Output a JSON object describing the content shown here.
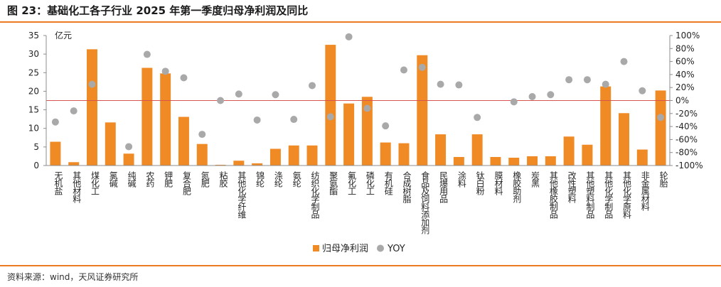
{
  "title": "图 23：基础化工各子行业 2025 年第一季度归母净利润及同比",
  "source": "资料来源：wind，天风证券研究所",
  "colors": {
    "bar": "#f08a24",
    "dot": "#a9a9a9",
    "zero_line": "#d9534f",
    "accent": "#ec7a22"
  },
  "chart_data": {
    "type": "bar",
    "unit_label": "亿元",
    "categories": [
      "无机盐",
      "其他材料",
      "煤化工",
      "氯碱",
      "纯碱",
      "农药",
      "钾肥",
      "复合肥",
      "氮肥",
      "粘胶",
      "其他化学纤维",
      "锦纶",
      "涤纶",
      "氨纶",
      "纺织化学制品",
      "聚氨酯",
      "氟化工",
      "磷化工",
      "有机硅",
      "合成树脂",
      "食品及饲料添加剂",
      "民爆用品",
      "涂料",
      "钛白粉",
      "膜材料",
      "橡胶助剂",
      "炭黑",
      "其他橡胶制品",
      "改性塑料",
      "其他塑料制品",
      "其他化学制品",
      "其他化学原料",
      "非金属材料",
      "轮胎"
    ],
    "series": [
      {
        "name": "归母净利润",
        "type": "bar",
        "axis": "left",
        "values": [
          6.4,
          0.9,
          31.3,
          11.6,
          3.2,
          26.3,
          24.8,
          13.1,
          5.8,
          0.2,
          1.3,
          0.6,
          4.5,
          5.4,
          5.4,
          32.5,
          16.7,
          18.5,
          6.2,
          6.0,
          29.7,
          8.4,
          2.3,
          8.4,
          2.3,
          2.1,
          2.5,
          2.5,
          7.8,
          5.6,
          21.3,
          14.1,
          4.3,
          20.2
        ]
      },
      {
        "name": "YOY",
        "type": "scatter",
        "axis": "right",
        "values": [
          -33,
          -16,
          25,
          null,
          -71,
          71,
          45,
          35,
          -52,
          0,
          10,
          -30,
          9,
          -29,
          23,
          -25,
          98,
          -12,
          -39,
          47,
          51,
          25,
          24,
          -26,
          null,
          -2,
          6,
          9,
          32,
          32,
          25,
          60,
          15,
          -26
        ]
      }
    ],
    "y_left": {
      "min": 0,
      "max": 35,
      "ticks": [
        "0",
        "5",
        "10",
        "15",
        "20",
        "25",
        "30",
        "35"
      ]
    },
    "y_right": {
      "min": -100,
      "max": 100,
      "ticks": [
        "-100%",
        "-80%",
        "-60%",
        "-40%",
        "-20%",
        "0%",
        "20%",
        "40%",
        "60%",
        "80%",
        "100%"
      ]
    },
    "legend_position": "bottom-center",
    "grid": false
  }
}
